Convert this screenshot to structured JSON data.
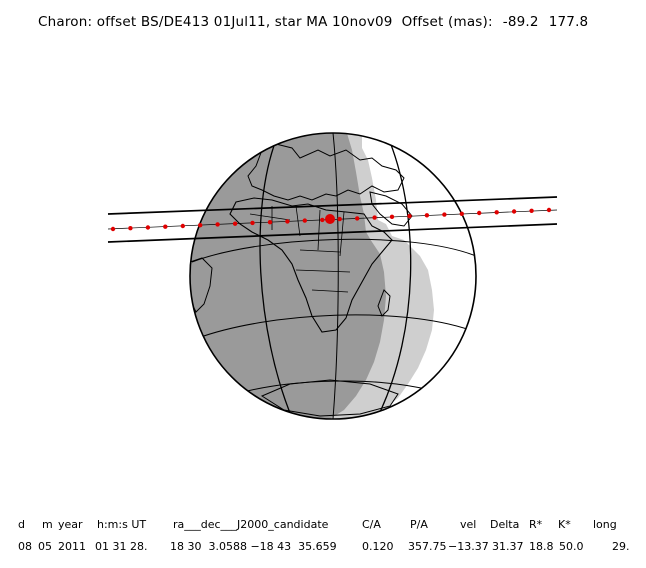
{
  "header": {
    "title": "Charon: offset BS/DE413 01Jul11, star MA 10nov09  Offset (mas):",
    "offset_x": "-89.2",
    "offset_y": "177.8"
  },
  "table": {
    "headers": [
      "d",
      "m",
      "year",
      "h:m:s UT",
      "ra___dec___J2000_candidate",
      "C/A",
      "P/A",
      "vel",
      "Delta",
      "R*",
      "K*",
      "long"
    ],
    "values": [
      "08",
      "05",
      "2011",
      "01 31 28.",
      "18 30  3.0588 −18 43  35.659",
      "0.120",
      "357.75",
      "−13.37",
      "31.37",
      "18.8",
      "50.0",
      "29."
    ]
  },
  "colors": {
    "night": "#9a9a9a",
    "twilight": "#cfcfcf",
    "day": "#ffffff",
    "track": "#e00000",
    "lines": "#000000"
  }
}
